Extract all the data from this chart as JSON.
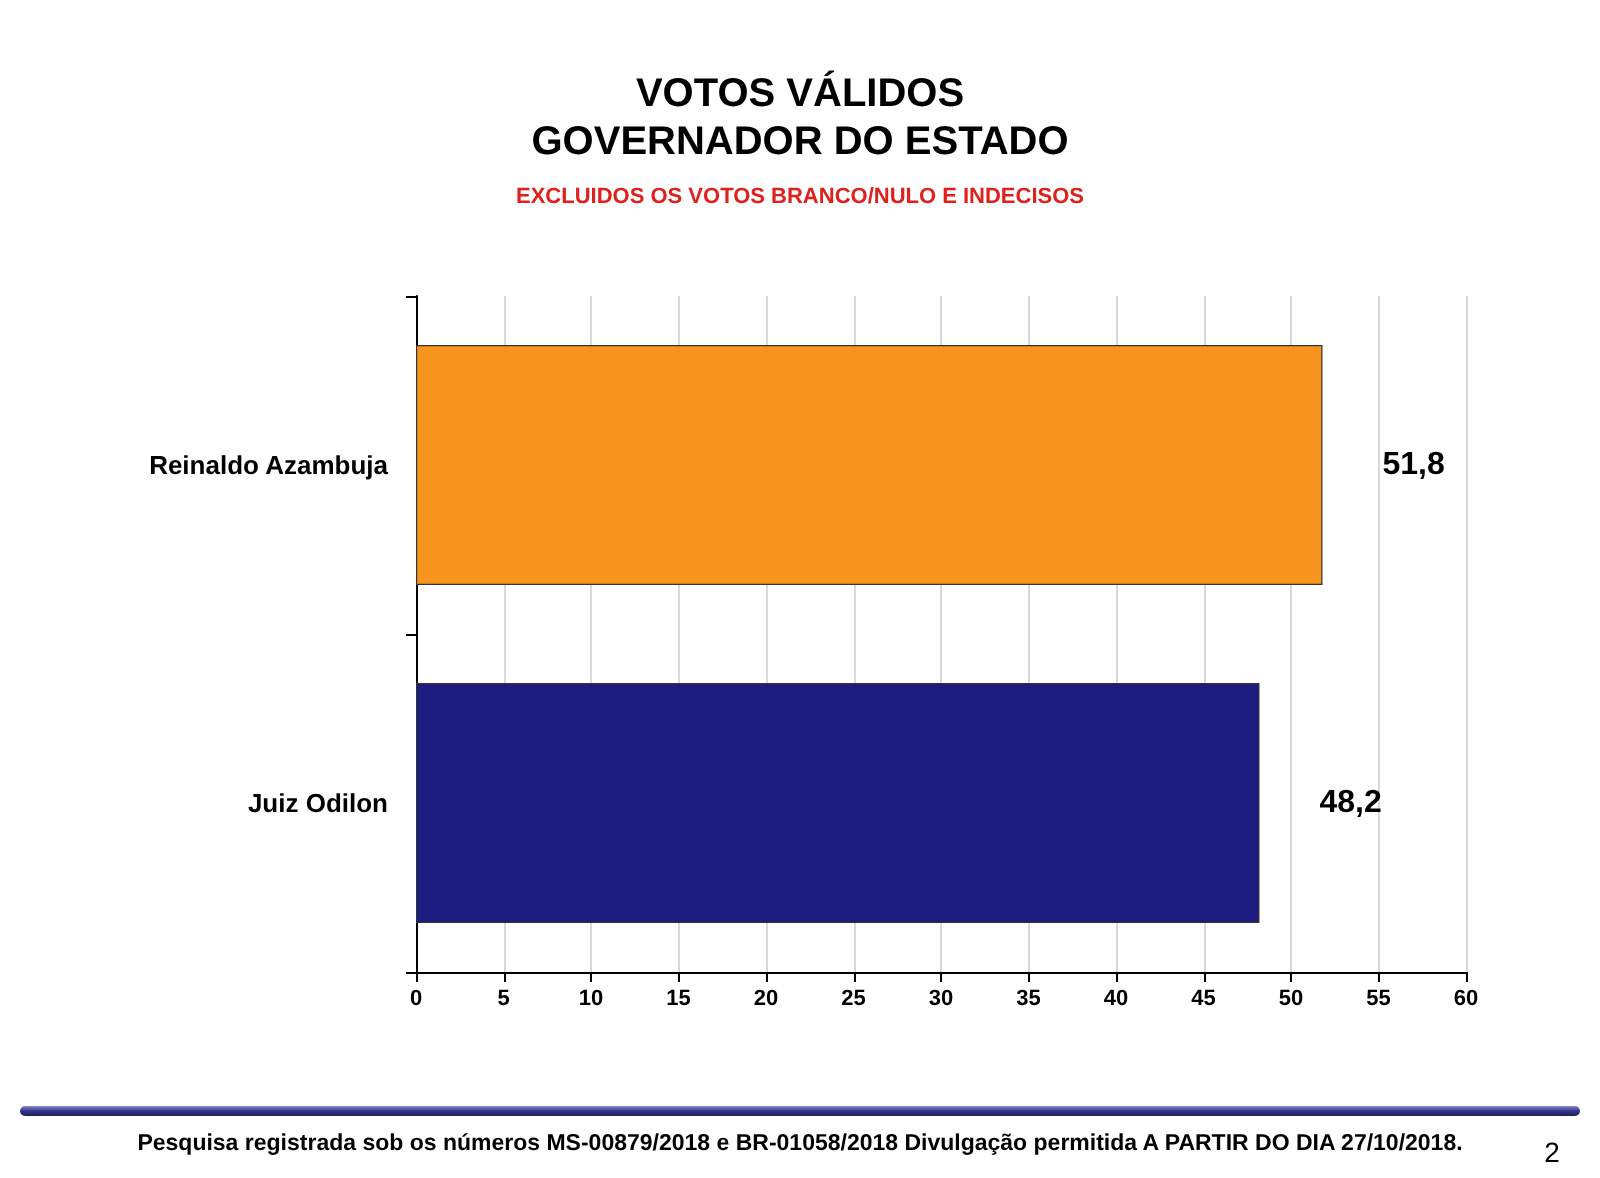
{
  "chart_data": {
    "type": "bar",
    "orientation": "horizontal",
    "title": "VOTOS VÁLIDOS\nGOVERNADOR DO ESTADO",
    "subtitle": "EXCLUIDOS OS VOTOS BRANCO/NULO E INDECISOS",
    "categories": [
      "Reinaldo Azambuja",
      "Juiz Odilon"
    ],
    "values": [
      51.8,
      48.2
    ],
    "colors": [
      "#f7941d",
      "#1c1c80"
    ],
    "value_labels": [
      "51,8",
      "48,2"
    ],
    "xlim": [
      0,
      60
    ],
    "xticks": [
      0,
      5,
      10,
      15,
      20,
      25,
      30,
      35,
      40,
      45,
      50,
      55,
      60
    ],
    "grid": "x",
    "annotations": [
      "Pesquisa registrada sob os números MS-00879/2018 e BR-01058/2018 Divulgação permitida A PARTIR DO DIA 27/10/2018.",
      "2"
    ]
  }
}
